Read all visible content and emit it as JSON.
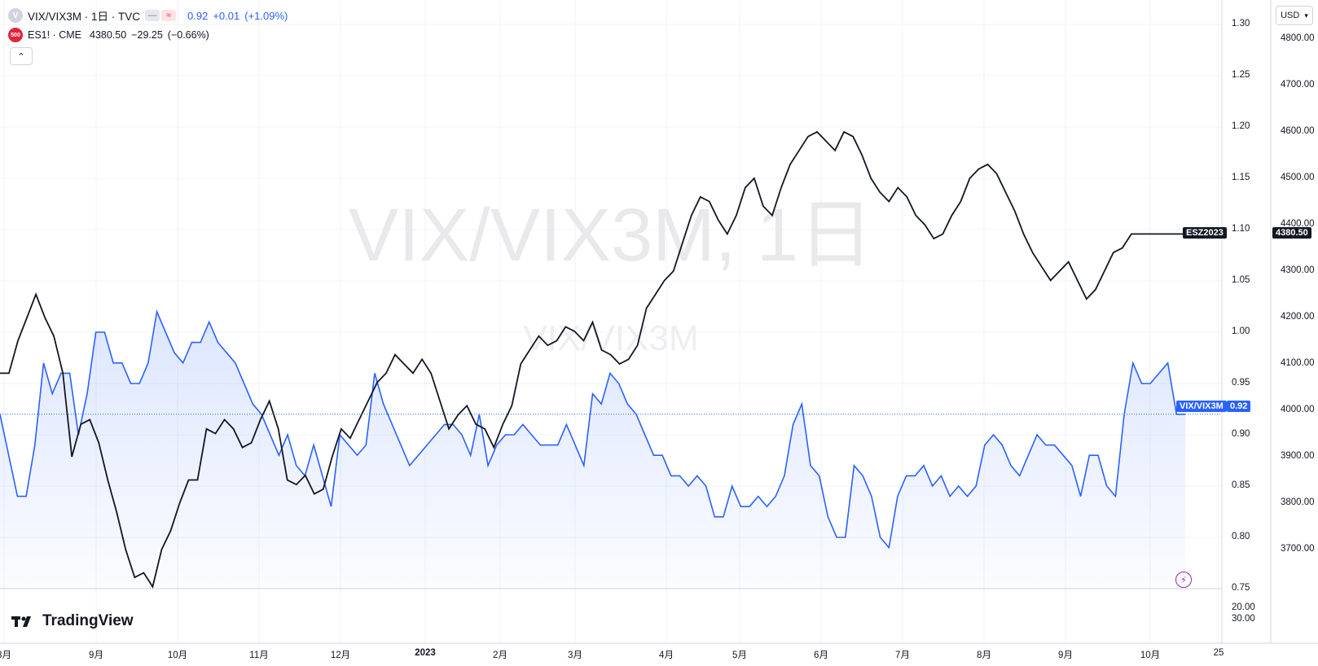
{
  "legend": {
    "vix": {
      "icon": "V",
      "title": "VIX/VIX3M · 1日 · TVC",
      "value": "0.92",
      "change": "+0.01",
      "change_pct": "(+1.09%)",
      "color": "#2962ff"
    },
    "es": {
      "icon": "500",
      "title": "ES1! · CME",
      "value": "4380.50",
      "change": "−29.25",
      "change_pct": "(−0.66%)",
      "color": "#131722"
    }
  },
  "watermark": {
    "main": "VIX/VIX3M, 1日",
    "sub": "VIX/VIX3M"
  },
  "currency": "USD",
  "brand": "TradingView",
  "icons": {
    "logo": "tradingview-logo-icon",
    "collapse": "chevron-up-icon",
    "currency": "chevron-down-icon",
    "flash": "lightning-icon"
  },
  "axes": {
    "left_ticks": [
      "1.30",
      "1.25",
      "1.20",
      "1.15",
      "1.10",
      "1.05",
      "1.00",
      "0.95",
      "0.90",
      "0.85",
      "0.80",
      "0.75"
    ],
    "right_ticks": [
      "4800.00",
      "4700.00",
      "4600.00",
      "4500.00",
      "4400.00",
      "4300.00",
      "4200.00",
      "4100.00",
      "4000.00",
      "3900.00",
      "3800.00",
      "3700.00"
    ],
    "lower_ticks": [
      "20.00",
      "30.00"
    ],
    "x_ticks": [
      "8月",
      "9月",
      "10月",
      "11月",
      "12月",
      "2023",
      "2月",
      "3月",
      "4月",
      "5月",
      "6月",
      "7月",
      "8月",
      "9月",
      "10月",
      "25"
    ]
  },
  "tags": {
    "es_label": "ESZ2023",
    "es_value": "4380.50",
    "vix_label": "VIX/VIX3M",
    "vix_value": "0.92"
  },
  "chart_data": {
    "type": "line",
    "x_label": "",
    "series": [
      {
        "name": "VIX/VIX3M",
        "axis": "left",
        "color": "#2962ff",
        "ylim": [
          0.75,
          1.3
        ],
        "values": [
          0.92,
          0.88,
          0.84,
          0.84,
          0.89,
          0.97,
          0.94,
          0.96,
          0.96,
          0.9,
          0.94,
          1.0,
          1.0,
          0.97,
          0.97,
          0.95,
          0.95,
          0.97,
          1.02,
          1.0,
          0.98,
          0.97,
          0.99,
          0.99,
          1.01,
          0.99,
          0.98,
          0.97,
          0.95,
          0.93,
          0.92,
          0.9,
          0.88,
          0.9,
          0.87,
          0.86,
          0.89,
          0.86,
          0.83,
          0.9,
          0.89,
          0.88,
          0.89,
          0.96,
          0.93,
          0.91,
          0.89,
          0.87,
          0.88,
          0.89,
          0.9,
          0.91,
          0.91,
          0.9,
          0.88,
          0.92,
          0.87,
          0.89,
          0.9,
          0.9,
          0.91,
          0.9,
          0.89,
          0.89,
          0.89,
          0.91,
          0.89,
          0.87,
          0.94,
          0.93,
          0.96,
          0.95,
          0.93,
          0.92,
          0.9,
          0.88,
          0.88,
          0.86,
          0.86,
          0.85,
          0.86,
          0.85,
          0.82,
          0.82,
          0.85,
          0.83,
          0.83,
          0.84,
          0.83,
          0.84,
          0.86,
          0.91,
          0.93,
          0.87,
          0.86,
          0.82,
          0.8,
          0.8,
          0.87,
          0.86,
          0.84,
          0.8,
          0.79,
          0.84,
          0.86,
          0.86,
          0.87,
          0.85,
          0.86,
          0.84,
          0.85,
          0.84,
          0.85,
          0.89,
          0.9,
          0.89,
          0.87,
          0.86,
          0.88,
          0.9,
          0.89,
          0.89,
          0.88,
          0.87,
          0.84,
          0.88,
          0.88,
          0.85,
          0.84,
          0.92,
          0.97,
          0.95,
          0.95,
          0.96,
          0.97,
          0.92,
          0.92
        ]
      },
      {
        "name": "ES1!",
        "axis": "right",
        "color": "#131722",
        "ylim": [
          3600,
          4850
        ],
        "values": [
          4080,
          4080,
          4150,
          4200,
          4250,
          4200,
          4160,
          4080,
          3900,
          3970,
          3980,
          3930,
          3850,
          3780,
          3700,
          3640,
          3650,
          3620,
          3700,
          3740,
          3800,
          3850,
          3850,
          3960,
          3950,
          3980,
          3960,
          3920,
          3930,
          3980,
          4020,
          3960,
          3850,
          3840,
          3860,
          3820,
          3830,
          3900,
          3960,
          3940,
          3980,
          4020,
          4060,
          4080,
          4120,
          4100,
          4080,
          4110,
          4080,
          4020,
          3960,
          3990,
          4010,
          3970,
          3960,
          3920,
          3970,
          4010,
          4100,
          4130,
          4160,
          4140,
          4150,
          4180,
          4170,
          4150,
          4190,
          4130,
          4120,
          4100,
          4110,
          4140,
          4220,
          4250,
          4280,
          4300,
          4360,
          4420,
          4460,
          4450,
          4410,
          4380,
          4420,
          4480,
          4500,
          4440,
          4420,
          4480,
          4530,
          4560,
          4590,
          4600,
          4580,
          4560,
          4600,
          4590,
          4550,
          4500,
          4470,
          4450,
          4480,
          4460,
          4420,
          4400,
          4370,
          4380,
          4420,
          4450,
          4500,
          4520,
          4530,
          4510,
          4470,
          4430,
          4380,
          4340,
          4310,
          4280,
          4300,
          4320,
          4280,
          4240,
          4260,
          4300,
          4340,
          4350,
          4380,
          4380,
          4380,
          4380,
          4380,
          4380,
          4380
        ]
      }
    ]
  }
}
